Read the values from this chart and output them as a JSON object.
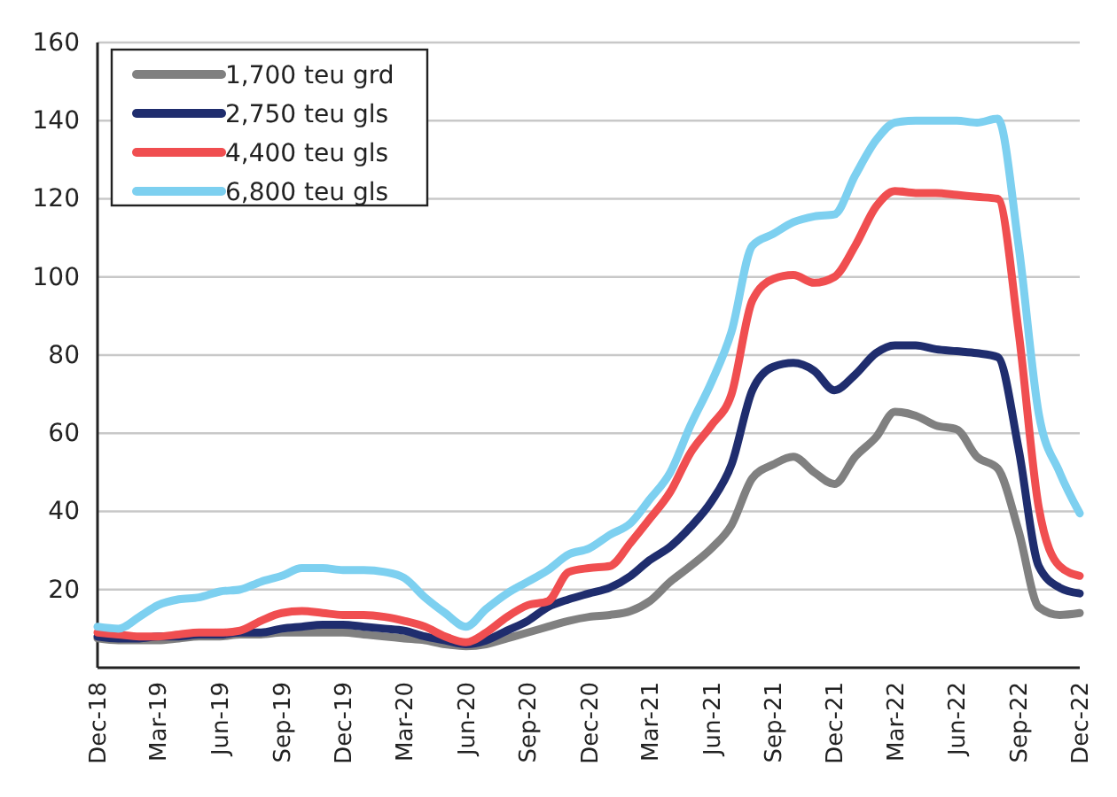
{
  "chart_data": {
    "type": "line",
    "x": [
      "2018-12",
      "2019-01",
      "2019-02",
      "2019-03",
      "2019-04",
      "2019-05",
      "2019-06",
      "2019-07",
      "2019-08",
      "2019-09",
      "2019-10",
      "2019-11",
      "2019-12",
      "2020-01",
      "2020-02",
      "2020-03",
      "2020-04",
      "2020-05",
      "2020-06",
      "2020-07",
      "2020-08",
      "2020-09",
      "2020-10",
      "2020-11",
      "2020-12",
      "2021-01",
      "2021-02",
      "2021-03",
      "2021-04",
      "2021-05",
      "2021-06",
      "2021-07",
      "2021-08",
      "2021-09",
      "2021-10",
      "2021-11",
      "2021-12",
      "2022-01",
      "2022-02",
      "2022-03",
      "2022-04",
      "2022-05",
      "2022-06",
      "2022-07",
      "2022-08",
      "2022-09",
      "2022-10",
      "2022-11",
      "2022-12"
    ],
    "series": [
      {
        "name": "1,700 teu grd",
        "color": "#808080",
        "values": [
          7.5,
          7,
          7,
          7,
          7.5,
          8,
          8,
          8.5,
          8.5,
          9,
          9,
          9,
          9,
          8.5,
          8,
          7.5,
          7,
          6,
          5.5,
          6,
          7.5,
          9,
          10.5,
          12,
          13,
          13.5,
          14.5,
          17,
          22,
          26,
          30.5,
          36.5,
          48.5,
          52,
          54,
          50,
          47,
          54,
          59,
          65.5,
          64.5,
          62,
          61,
          54,
          51,
          35,
          15.5,
          13.5,
          14
        ]
      },
      {
        "name": "2,750 teu gls",
        "color": "#1f2d6e",
        "values": [
          8,
          7.5,
          7.5,
          8,
          8,
          8.5,
          8.5,
          9,
          9,
          10,
          10.5,
          11,
          11,
          10.5,
          10,
          9.5,
          8,
          7,
          6,
          7,
          9.5,
          12,
          15.5,
          17.5,
          19,
          20.5,
          23.5,
          27.5,
          31,
          36,
          42.5,
          52,
          71,
          77,
          78,
          76,
          71,
          75,
          80.5,
          82.5,
          82.5,
          81.5,
          81,
          80.5,
          79.5,
          56,
          26,
          20.5,
          19
        ]
      },
      {
        "name": "4,400 teu gls",
        "color": "#f04e50",
        "values": [
          9,
          8.5,
          8,
          8,
          8.5,
          9,
          9,
          9.5,
          12,
          14,
          14.5,
          14,
          13.5,
          13.5,
          13,
          12,
          10.5,
          8,
          6.5,
          9,
          13,
          16,
          17,
          24.5,
          25.5,
          26,
          32,
          38,
          45,
          55,
          62,
          70,
          94,
          99.5,
          100.5,
          98.5,
          100,
          108,
          118,
          122,
          121.5,
          121.5,
          121,
          120.5,
          120,
          86,
          41,
          26,
          23.5
        ]
      },
      {
        "name": "6,800 teu gls",
        "color": "#7dd0f0",
        "values": [
          10.5,
          10,
          13,
          16,
          17.5,
          18,
          19.5,
          20,
          22,
          23.5,
          25.5,
          25.5,
          25,
          25,
          24.5,
          23,
          18,
          14,
          10.5,
          15,
          19,
          22,
          25,
          29,
          30.5,
          34,
          37,
          43,
          50,
          62,
          73,
          86,
          108,
          111,
          114,
          115.5,
          116,
          126,
          135,
          139.5,
          140,
          140,
          140,
          139.5,
          140.5,
          108,
          65,
          50,
          39.5
        ]
      }
    ],
    "xlim": [
      "2018-12",
      "2022-12"
    ],
    "xticks": [
      {
        "value": "2018-12",
        "label": "Dec-18"
      },
      {
        "value": "2019-03",
        "label": "Mar-19"
      },
      {
        "value": "2019-06",
        "label": "Jun-19"
      },
      {
        "value": "2019-09",
        "label": "Sep-19"
      },
      {
        "value": "2019-12",
        "label": "Dec-19"
      },
      {
        "value": "2020-03",
        "label": "Mar-20"
      },
      {
        "value": "2020-06",
        "label": "Jun-20"
      },
      {
        "value": "2020-09",
        "label": "Sep-20"
      },
      {
        "value": "2020-12",
        "label": "Dec-20"
      },
      {
        "value": "2021-03",
        "label": "Mar-21"
      },
      {
        "value": "2021-06",
        "label": "Jun-21"
      },
      {
        "value": "2021-09",
        "label": "Sep-21"
      },
      {
        "value": "2021-12",
        "label": "Dec-21"
      },
      {
        "value": "2022-03",
        "label": "Mar-22"
      },
      {
        "value": "2022-06",
        "label": "Jun-22"
      },
      {
        "value": "2022-09",
        "label": "Sep-22"
      },
      {
        "value": "2022-12",
        "label": "Dec-22"
      }
    ],
    "ylim": [
      0,
      160
    ],
    "yticks": [
      20,
      40,
      60,
      80,
      100,
      120,
      140,
      160
    ],
    "grid": "y",
    "legend": "top left",
    "line_style": "solid",
    "marker": "none"
  }
}
